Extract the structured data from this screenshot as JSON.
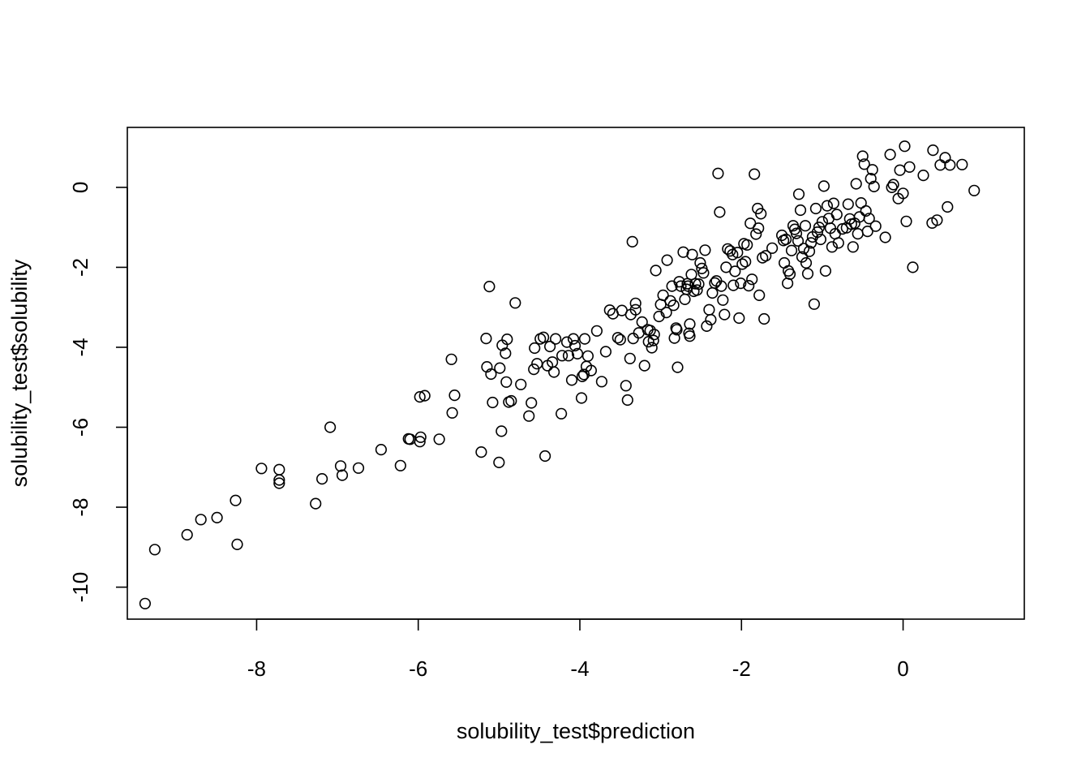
{
  "chart_data": {
    "type": "scatter",
    "xlabel": "solubility_test$prediction",
    "ylabel": "solubility_test$solubility",
    "xlim": [
      -9.6,
      1.5
    ],
    "ylim": [
      -10.8,
      1.5
    ],
    "x_ticks": [
      -8,
      -6,
      -4,
      -2,
      0
    ],
    "x_tick_labels": [
      "-8",
      "-6",
      "-4",
      "-2",
      "0"
    ],
    "y_ticks": [
      -10,
      -8,
      -6,
      -4,
      -2,
      0
    ],
    "y_tick_labels": [
      "-10",
      "-8",
      "-6",
      "-4",
      "-2",
      "0"
    ],
    "grid": false,
    "marker": "open-circle",
    "points": [
      [
        -9.38,
        -10.41
      ],
      [
        -9.26,
        -9.06
      ],
      [
        -8.86,
        -8.69
      ],
      [
        -8.69,
        -8.31
      ],
      [
        -8.49,
        -8.26
      ],
      [
        -8.26,
        -7.83
      ],
      [
        -8.24,
        -8.93
      ],
      [
        -7.94,
        -7.03
      ],
      [
        -7.72,
        -7.06
      ],
      [
        -7.72,
        -7.32
      ],
      [
        -7.72,
        -7.4
      ],
      [
        -7.27,
        -7.91
      ],
      [
        -7.19,
        -7.29
      ],
      [
        -7.09,
        -6.0
      ],
      [
        -6.96,
        -6.97
      ],
      [
        -6.94,
        -7.2
      ],
      [
        -6.74,
        -7.02
      ],
      [
        -6.46,
        -6.56
      ],
      [
        -6.22,
        -6.96
      ],
      [
        -6.12,
        -6.29
      ],
      [
        -6.1,
        -6.3
      ],
      [
        -5.98,
        -6.36
      ],
      [
        -5.97,
        -6.25
      ],
      [
        -5.98,
        -5.24
      ],
      [
        -5.92,
        -5.21
      ],
      [
        -5.74,
        -6.3
      ],
      [
        -5.59,
        -4.3
      ],
      [
        -5.58,
        -5.64
      ],
      [
        -5.55,
        -5.2
      ],
      [
        -5.22,
        -6.62
      ],
      [
        -5.16,
        -3.78
      ],
      [
        -5.15,
        -4.49
      ],
      [
        -5.12,
        -2.48
      ],
      [
        -5.1,
        -4.67
      ],
      [
        -5.08,
        -5.38
      ],
      [
        -5.0,
        -6.88
      ],
      [
        -4.99,
        -4.52
      ],
      [
        -4.97,
        -6.1
      ],
      [
        -4.96,
        -3.95
      ],
      [
        -4.92,
        -4.15
      ],
      [
        -4.91,
        -4.87
      ],
      [
        -4.9,
        -3.8
      ],
      [
        -4.88,
        -5.37
      ],
      [
        -4.85,
        -5.34
      ],
      [
        -4.8,
        -2.89
      ],
      [
        -4.73,
        -4.93
      ],
      [
        -4.63,
        -5.72
      ],
      [
        -4.6,
        -5.39
      ],
      [
        -4.57,
        -4.55
      ],
      [
        -4.56,
        -4.02
      ],
      [
        -4.53,
        -4.41
      ],
      [
        -4.49,
        -3.79
      ],
      [
        -4.45,
        -3.75
      ],
      [
        -4.43,
        -6.72
      ],
      [
        -4.4,
        -4.46
      ],
      [
        -4.37,
        -3.98
      ],
      [
        -4.34,
        -4.37
      ],
      [
        -4.32,
        -4.62
      ],
      [
        -4.3,
        -3.79
      ],
      [
        -4.23,
        -5.66
      ],
      [
        -4.22,
        -4.21
      ],
      [
        -4.16,
        -3.87
      ],
      [
        -4.14,
        -4.21
      ],
      [
        -4.1,
        -4.82
      ],
      [
        -4.08,
        -3.79
      ],
      [
        -4.06,
        -3.96
      ],
      [
        -4.03,
        -4.16
      ],
      [
        -3.98,
        -5.27
      ],
      [
        -3.97,
        -4.73
      ],
      [
        -3.95,
        -4.68
      ],
      [
        -3.94,
        -3.79
      ],
      [
        -3.92,
        -4.48
      ],
      [
        -3.9,
        -4.22
      ],
      [
        -3.86,
        -4.58
      ],
      [
        -3.79,
        -3.59
      ],
      [
        -3.73,
        -4.86
      ],
      [
        -3.68,
        -4.11
      ],
      [
        -3.63,
        -3.07
      ],
      [
        -3.59,
        -3.16
      ],
      [
        -3.53,
        -3.76
      ],
      [
        -3.5,
        -3.81
      ],
      [
        -3.48,
        -3.08
      ],
      [
        -3.43,
        -4.96
      ],
      [
        -3.41,
        -5.32
      ],
      [
        -3.38,
        -4.28
      ],
      [
        -3.37,
        -3.18
      ],
      [
        -3.35,
        -1.36
      ],
      [
        -3.34,
        -3.78
      ],
      [
        -3.31,
        -2.9
      ],
      [
        -3.31,
        -3.06
      ],
      [
        -3.27,
        -3.64
      ],
      [
        -3.23,
        -3.37
      ],
      [
        -3.2,
        -4.46
      ],
      [
        -3.16,
        -3.56
      ],
      [
        -3.15,
        -3.86
      ],
      [
        -3.13,
        -3.58
      ],
      [
        -3.11,
        -4.01
      ],
      [
        -3.09,
        -3.83
      ],
      [
        -3.08,
        -3.68
      ],
      [
        -3.06,
        -2.08
      ],
      [
        -3.02,
        -3.23
      ],
      [
        -3.0,
        -2.93
      ],
      [
        -2.97,
        -2.7
      ],
      [
        -2.93,
        -3.13
      ],
      [
        -2.92,
        -1.82
      ],
      [
        -2.88,
        -2.84
      ],
      [
        -2.86,
        -2.47
      ],
      [
        -2.84,
        -2.95
      ],
      [
        -2.83,
        -3.77
      ],
      [
        -2.81,
        -3.52
      ],
      [
        -2.8,
        -3.56
      ],
      [
        -2.79,
        -4.5
      ],
      [
        -2.77,
        -2.36
      ],
      [
        -2.75,
        -2.47
      ],
      [
        -2.72,
        -1.62
      ],
      [
        -2.7,
        -2.8
      ],
      [
        -2.68,
        -2.55
      ],
      [
        -2.67,
        -2.41
      ],
      [
        -2.66,
        -2.47
      ],
      [
        -2.65,
        -3.65
      ],
      [
        -2.64,
        -3.72
      ],
      [
        -2.64,
        -3.42
      ],
      [
        -2.62,
        -2.18
      ],
      [
        -2.61,
        -1.68
      ],
      [
        -2.59,
        -2.6
      ],
      [
        -2.57,
        -2.41
      ],
      [
        -2.55,
        -2.57
      ],
      [
        -2.53,
        -2.42
      ],
      [
        -2.51,
        -1.89
      ],
      [
        -2.49,
        -2.03
      ],
      [
        -2.47,
        -2.14
      ],
      [
        -2.45,
        -1.57
      ],
      [
        -2.43,
        -3.47
      ],
      [
        -2.4,
        -3.06
      ],
      [
        -2.38,
        -3.31
      ],
      [
        -2.36,
        -2.64
      ],
      [
        -2.33,
        -2.39
      ],
      [
        -2.31,
        -2.34
      ],
      [
        -2.29,
        0.35
      ],
      [
        -2.27,
        -0.62
      ],
      [
        -2.25,
        -2.47
      ],
      [
        -2.23,
        -2.82
      ],
      [
        -2.21,
        -3.18
      ],
      [
        -2.19,
        -2.0
      ],
      [
        -2.17,
        -1.54
      ],
      [
        -2.14,
        -1.59
      ],
      [
        -2.11,
        -1.68
      ],
      [
        -2.1,
        -2.45
      ],
      [
        -2.08,
        -2.1
      ],
      [
        -2.05,
        -1.63
      ],
      [
        -2.03,
        -3.27
      ],
      [
        -2.01,
        -2.4
      ],
      [
        -1.99,
        -1.92
      ],
      [
        -1.97,
        -1.41
      ],
      [
        -1.95,
        -1.86
      ],
      [
        -1.93,
        -1.44
      ],
      [
        -1.91,
        -2.46
      ],
      [
        -1.89,
        -0.9
      ],
      [
        -1.87,
        -2.3
      ],
      [
        -1.84,
        0.33
      ],
      [
        -1.82,
        -1.17
      ],
      [
        -1.8,
        -0.53
      ],
      [
        -1.79,
        -1.02
      ],
      [
        -1.78,
        -2.7
      ],
      [
        -1.76,
        -0.66
      ],
      [
        -1.74,
        -1.76
      ],
      [
        -1.72,
        -3.29
      ],
      [
        -1.7,
        -1.71
      ],
      [
        -1.62,
        -1.52
      ],
      [
        -1.5,
        -1.2
      ],
      [
        -1.48,
        -1.33
      ],
      [
        -1.47,
        -1.89
      ],
      [
        -1.45,
        -1.3
      ],
      [
        -1.43,
        -2.4
      ],
      [
        -1.42,
        -2.09
      ],
      [
        -1.4,
        -2.17
      ],
      [
        -1.38,
        -1.58
      ],
      [
        -1.36,
        -0.96
      ],
      [
        -1.34,
        -1.05
      ],
      [
        -1.32,
        -1.15
      ],
      [
        -1.3,
        -1.34
      ],
      [
        -1.29,
        -0.17
      ],
      [
        -1.27,
        -0.57
      ],
      [
        -1.25,
        -1.74
      ],
      [
        -1.23,
        -1.53
      ],
      [
        -1.21,
        -0.96
      ],
      [
        -1.2,
        -1.89
      ],
      [
        -1.18,
        -2.16
      ],
      [
        -1.16,
        -1.6
      ],
      [
        -1.14,
        -1.39
      ],
      [
        -1.12,
        -1.24
      ],
      [
        -1.1,
        -2.92
      ],
      [
        -1.08,
        -0.53
      ],
      [
        -1.06,
        -1.12
      ],
      [
        -1.04,
        -1.0
      ],
      [
        -1.02,
        -1.3
      ],
      [
        -1.0,
        -0.86
      ],
      [
        -0.98,
        0.03
      ],
      [
        -0.96,
        -2.09
      ],
      [
        -0.94,
        -0.46
      ],
      [
        -0.92,
        -0.78
      ],
      [
        -0.9,
        -1.02
      ],
      [
        -0.88,
        -1.49
      ],
      [
        -0.86,
        -0.4
      ],
      [
        -0.84,
        -1.16
      ],
      [
        -0.82,
        -0.68
      ],
      [
        -0.8,
        -1.39
      ],
      [
        -0.75,
        -1.04
      ],
      [
        -0.7,
        -1.01
      ],
      [
        -0.68,
        -0.42
      ],
      [
        -0.66,
        -0.79
      ],
      [
        -0.64,
        -0.92
      ],
      [
        -0.62,
        -1.49
      ],
      [
        -0.6,
        -0.9
      ],
      [
        -0.58,
        0.09
      ],
      [
        -0.56,
        -1.16
      ],
      [
        -0.54,
        -0.74
      ],
      [
        -0.52,
        -0.39
      ],
      [
        -0.5,
        0.78
      ],
      [
        -0.48,
        0.58
      ],
      [
        -0.46,
        -0.59
      ],
      [
        -0.44,
        -1.1
      ],
      [
        -0.42,
        -0.78
      ],
      [
        -0.4,
        0.22
      ],
      [
        -0.38,
        0.44
      ],
      [
        -0.36,
        0.02
      ],
      [
        -0.34,
        -0.97
      ],
      [
        -0.22,
        -1.25
      ],
      [
        -0.16,
        0.82
      ],
      [
        -0.14,
        0.0
      ],
      [
        -0.12,
        0.07
      ],
      [
        -0.06,
        -0.28
      ],
      [
        -0.04,
        0.43
      ],
      [
        0.0,
        -0.15
      ],
      [
        0.02,
        1.03
      ],
      [
        0.04,
        -0.85
      ],
      [
        0.08,
        0.51
      ],
      [
        0.12,
        -2.0
      ],
      [
        0.25,
        0.3
      ],
      [
        0.36,
        -0.89
      ],
      [
        0.37,
        0.93
      ],
      [
        0.42,
        -0.82
      ],
      [
        0.46,
        0.56
      ],
      [
        0.52,
        0.74
      ],
      [
        0.55,
        -0.49
      ],
      [
        0.58,
        0.56
      ],
      [
        0.73,
        0.57
      ],
      [
        0.88,
        -0.08
      ]
    ]
  }
}
